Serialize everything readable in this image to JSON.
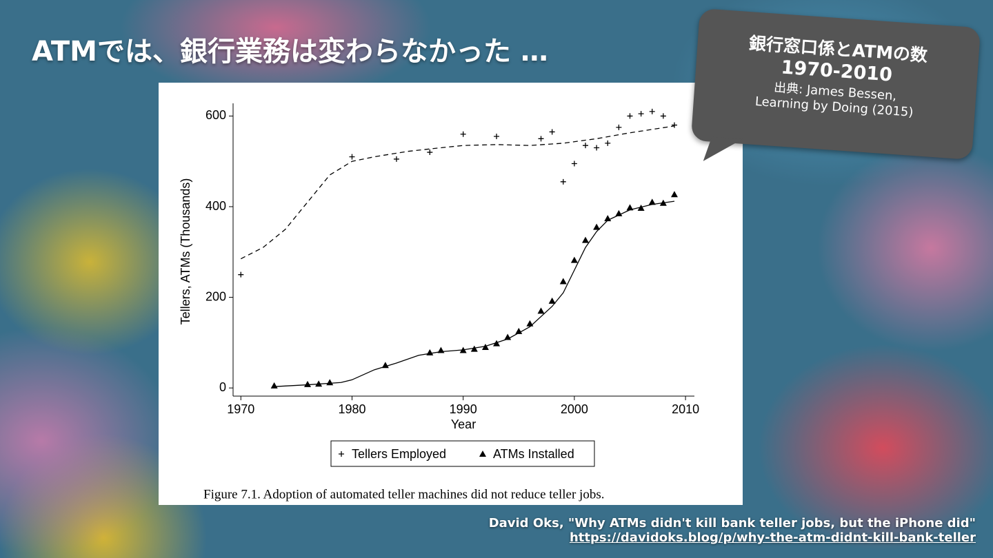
{
  "slide_title": "ATMでは、銀行業務は変わらなかった …",
  "callout": {
    "title": "銀行窓口係とATMの数",
    "period": "1970-2010",
    "source_line1": "出典: James Bessen,",
    "source_line2": "Learning by Doing (2015)"
  },
  "credit": {
    "text": "David Oks, \"Why ATMs didn't kill bank teller jobs, but the iPhone did\"",
    "url": "https://davidoks.blog/p/why-the-atm-didnt-kill-bank-teller"
  },
  "chart_data": {
    "type": "scatter",
    "xlabel": "Year",
    "ylabel": "Tellers, ATMs (Thousands)",
    "caption": "Figure 7.1. Adoption of automated teller machines did not reduce teller jobs.",
    "xlim": [
      1969.3,
      2010.8
    ],
    "ylim": [
      -18,
      628
    ],
    "xticks": [
      1970,
      1980,
      1990,
      2000,
      2010
    ],
    "yticks": [
      0,
      200,
      400,
      600
    ],
    "grid": false,
    "legend": "bottom",
    "series": [
      {
        "name": "Tellers Employed",
        "color": "#000000",
        "marker": "plus",
        "line_style": "dashed",
        "x": [
          1970,
          1980,
          1984,
          1987,
          1990,
          1993,
          1997,
          1998,
          1999,
          2000,
          2001,
          2002,
          2003,
          2004,
          2005,
          2006,
          2007,
          2008,
          2009
        ],
        "values": [
          250,
          510,
          505,
          520,
          560,
          555,
          550,
          565,
          455,
          495,
          535,
          530,
          540,
          575,
          600,
          605,
          610,
          600,
          580
        ],
        "fit": {
          "x": [
            1970,
            1972,
            1974,
            1976,
            1978,
            1980,
            1982,
            1985,
            1988,
            1990,
            1993,
            1996,
            1999,
            2002,
            2005,
            2009
          ],
          "values": [
            285,
            310,
            350,
            410,
            470,
            500,
            510,
            522,
            530,
            535,
            537,
            535,
            540,
            550,
            563,
            578
          ]
        }
      },
      {
        "name": "ATMs Installed",
        "color": "#000000",
        "marker": "triangle",
        "line_style": "solid",
        "x": [
          1973,
          1976,
          1977,
          1978,
          1983,
          1987,
          1988,
          1990,
          1991,
          1992,
          1993,
          1994,
          1995,
          1996,
          1997,
          1998,
          1999,
          2000,
          2001,
          2002,
          2003,
          2004,
          2005,
          2006,
          2007,
          2008,
          2009
        ],
        "values": [
          5,
          8,
          9,
          12,
          50,
          78,
          83,
          83,
          86,
          90,
          98,
          112,
          125,
          142,
          170,
          192,
          235,
          282,
          326,
          355,
          374,
          385,
          398,
          397,
          410,
          408,
          427
        ],
        "fit": {
          "x": [
            1973,
            1976,
            1979,
            1980,
            1982,
            1984,
            1986,
            1988,
            1990,
            1992,
            1994,
            1996,
            1998,
            1999,
            2000,
            2001,
            2002,
            2003,
            2005,
            2007,
            2009
          ],
          "values": [
            3,
            7,
            12,
            18,
            40,
            55,
            72,
            80,
            84,
            92,
            108,
            135,
            180,
            210,
            260,
            310,
            345,
            370,
            393,
            405,
            412
          ]
        }
      }
    ]
  }
}
